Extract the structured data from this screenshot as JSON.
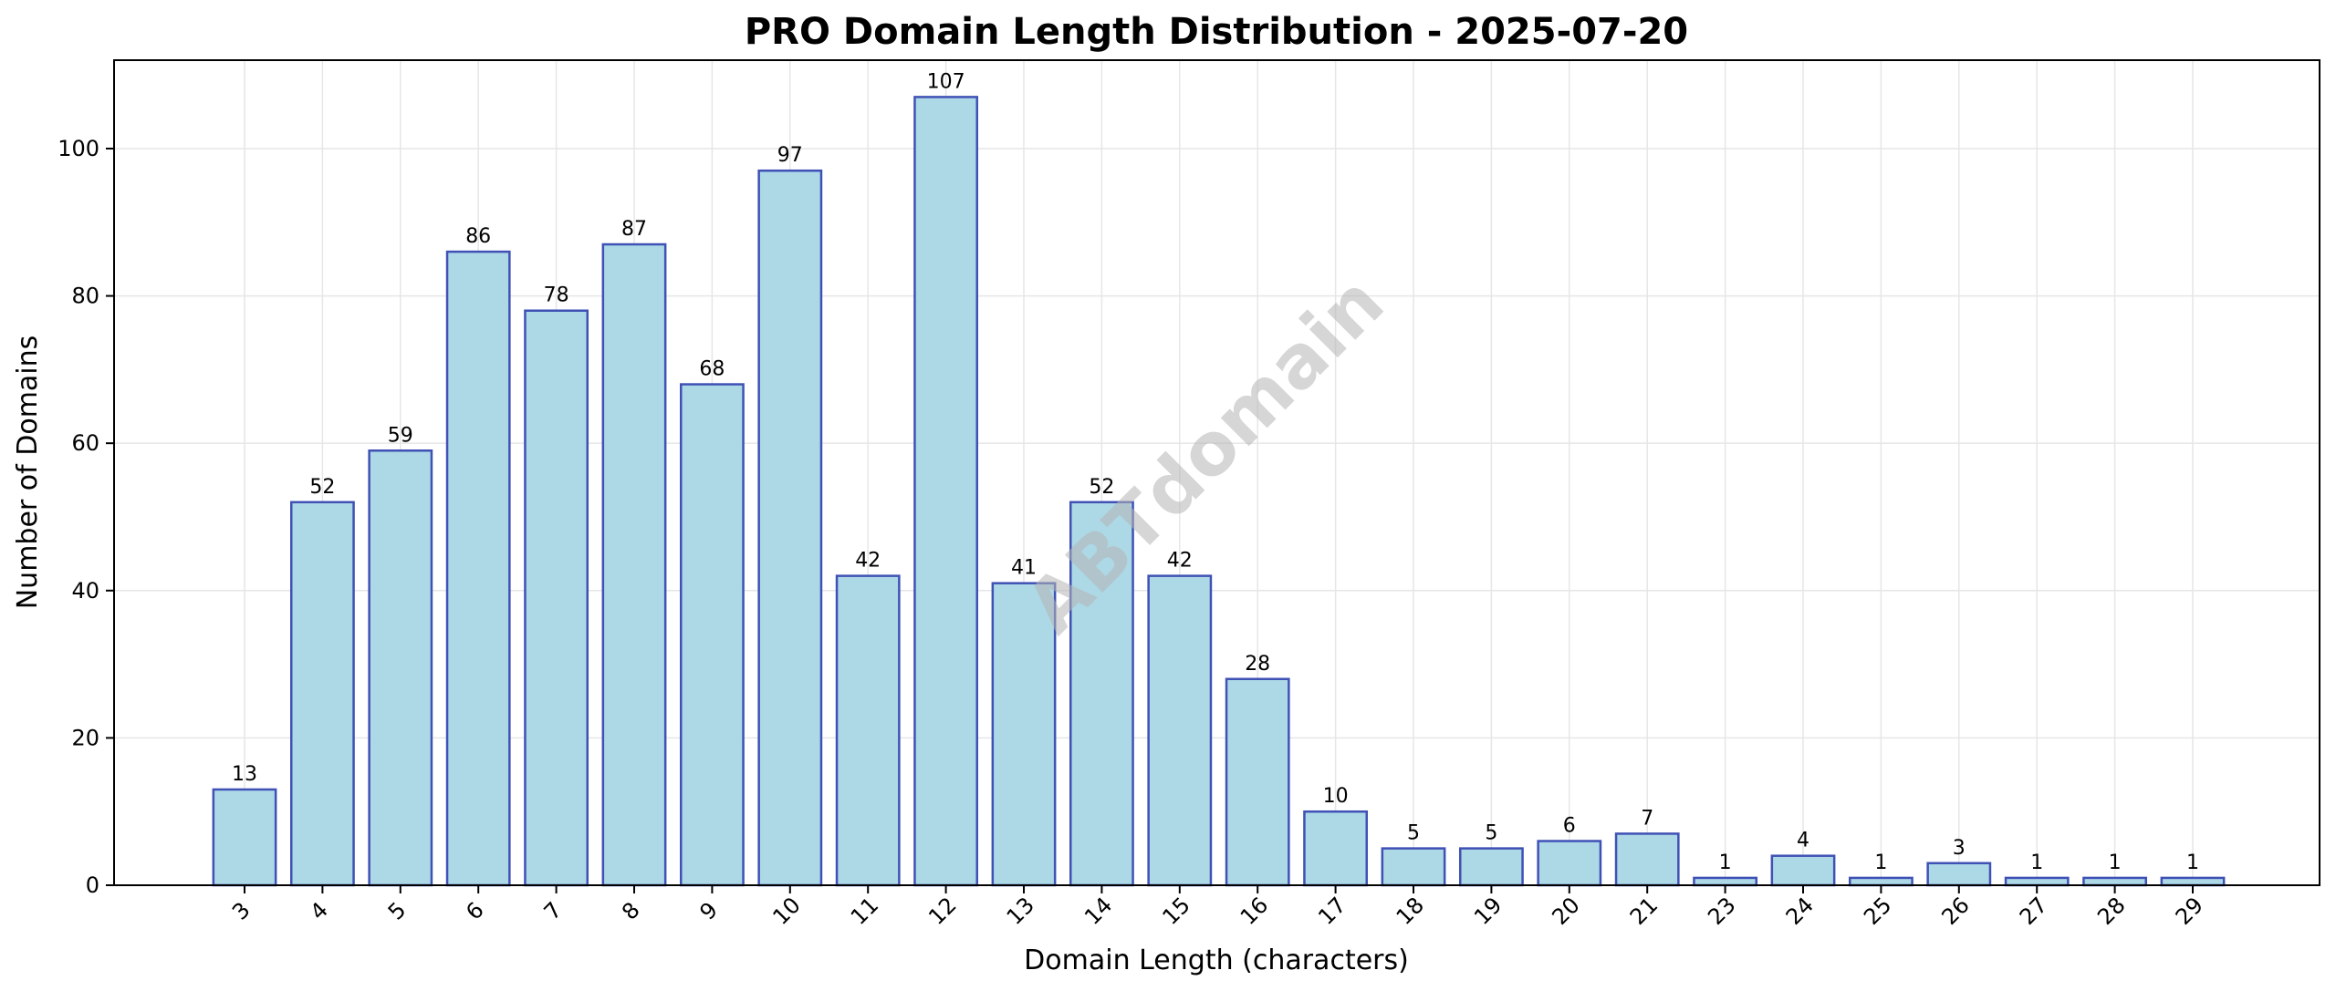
{
  "chart_data": {
    "type": "bar",
    "title": "PRO Domain Length Distribution - 2025-07-20",
    "xlabel": "Domain Length (characters)",
    "ylabel": "Number of Domains",
    "categories": [
      "3",
      "4",
      "5",
      "6",
      "7",
      "8",
      "9",
      "10",
      "11",
      "12",
      "13",
      "14",
      "15",
      "16",
      "17",
      "18",
      "19",
      "20",
      "21",
      "23",
      "24",
      "25",
      "26",
      "27",
      "28",
      "29"
    ],
    "values": [
      13,
      52,
      59,
      86,
      78,
      87,
      68,
      97,
      42,
      107,
      41,
      52,
      42,
      28,
      10,
      5,
      5,
      6,
      7,
      1,
      4,
      1,
      3,
      1,
      1,
      1
    ],
    "ylim": [
      0,
      112
    ],
    "yticks": [
      0,
      20,
      40,
      60,
      80,
      100
    ],
    "grid": true,
    "bar_fill": "#add8e6",
    "bar_edge": "#3f51b5",
    "grid_color": "#e6e6e6"
  },
  "watermark": "ABTdomain"
}
